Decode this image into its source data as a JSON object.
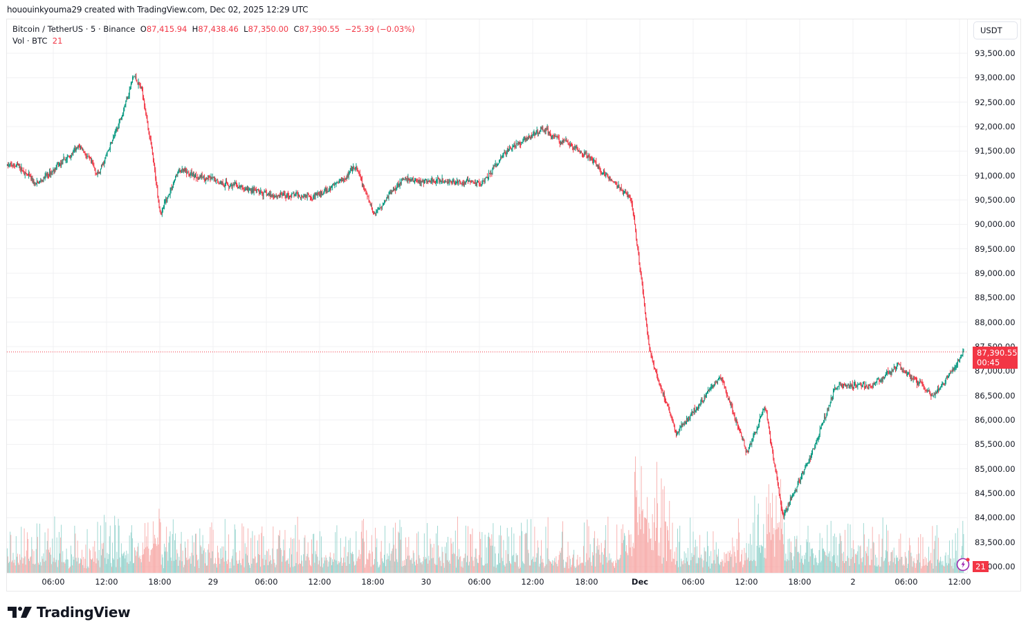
{
  "credit": "hououinkyouma29 created with TradingView.com, Dec 02, 2025 12:29 UTC",
  "legend": {
    "symbol": "Bitcoin / TetherUS · 5 · Binance",
    "o_label": "O",
    "o_value": "87,415.94",
    "h_label": "H",
    "h_value": "87,438.46",
    "l_label": "L",
    "l_value": "87,350.00",
    "c_label": "C",
    "c_value": "87,390.55",
    "change": "−25.39 (−0.03%)",
    "vol_label": "Vol · BTC",
    "vol_value": "21"
  },
  "currency_button": "USDT",
  "last_price": {
    "price": "87,390.55",
    "countdown": "00:45",
    "value": 87390.55
  },
  "volume_tag": "21",
  "brand": "TradingView",
  "colors": {
    "up": "#089981",
    "down": "#f23645",
    "up_volume": "#92d2cc",
    "down_volume": "#f7a9a7",
    "grid": "#f0f1f3",
    "last_price_line": "#f23645",
    "bolt": "#9c27b0"
  },
  "chart_data": {
    "type": "candlestick",
    "title": "Bitcoin / TetherUS · 5 · Binance",
    "interval": "5",
    "xlabel": "",
    "ylabel": "USDT",
    "ylim": [
      82900,
      93700
    ],
    "y_ticks": [
      93500,
      93000,
      92500,
      92000,
      91500,
      91000,
      90500,
      90000,
      89500,
      89000,
      88500,
      88000,
      87500,
      87000,
      86500,
      86000,
      85500,
      85000,
      84500,
      84000,
      83500,
      83000
    ],
    "y_tick_labels": [
      "93,500.00",
      "93,000.00",
      "92,500.00",
      "92,000.00",
      "91,500.00",
      "91,000.00",
      "90,500.00",
      "90,000.00",
      "89,500.00",
      "89,000.00",
      "88,500.00",
      "88,000.00",
      "87,500.00",
      "87,000.00",
      "86,500.00",
      "86,000.00",
      "85,500.00",
      "85,000.00",
      "84,500.00",
      "84,000.00",
      "83,500.00",
      "83,000.00"
    ],
    "x_tick_labels": [
      "06:00",
      "12:00",
      "18:00",
      "29",
      "06:00",
      "12:00",
      "18:00",
      "30",
      "06:00",
      "12:00",
      "18:00",
      "Dec",
      "06:00",
      "12:00",
      "18:00",
      "2",
      "06:00",
      "12:00"
    ],
    "grid": true,
    "price_path_approx": [
      {
        "t": "Nov 28 02:00",
        "price": 91200
      },
      {
        "t": "Nov 28 04:00",
        "price": 90800
      },
      {
        "t": "Nov 28 09:00",
        "price": 91600
      },
      {
        "t": "Nov 28 11:00",
        "price": 91000
      },
      {
        "t": "Nov 28 13:00",
        "price": 91900
      },
      {
        "t": "Nov 28 15:00",
        "price": 93050
      },
      {
        "t": "Nov 28 16:00",
        "price": 92700
      },
      {
        "t": "Nov 28 17:00",
        "price": 91500
      },
      {
        "t": "Nov 28 18:00",
        "price": 90200
      },
      {
        "t": "Nov 28 20:00",
        "price": 91100
      },
      {
        "t": "Nov 29 06:00",
        "price": 90600
      },
      {
        "t": "Nov 29 12:00",
        "price": 90600
      },
      {
        "t": "Nov 29 16:00",
        "price": 91150
      },
      {
        "t": "Nov 29 18:00",
        "price": 90200
      },
      {
        "t": "Nov 29 21:00",
        "price": 90900
      },
      {
        "t": "Nov 30 06:00",
        "price": 90850
      },
      {
        "t": "Nov 30 09:00",
        "price": 91500
      },
      {
        "t": "Nov 30 13:00",
        "price": 91950
      },
      {
        "t": "Nov 30 18:00",
        "price": 91400
      },
      {
        "t": "Nov 30 23:00",
        "price": 90500
      },
      {
        "t": "Dec 01 00:00",
        "price": 89000
      },
      {
        "t": "Dec 01 01:00",
        "price": 87400
      },
      {
        "t": "Dec 01 04:00",
        "price": 85700
      },
      {
        "t": "Dec 01 09:00",
        "price": 86900
      },
      {
        "t": "Dec 01 12:00",
        "price": 85300
      },
      {
        "t": "Dec 01 14:00",
        "price": 86300
      },
      {
        "t": "Dec 01 16:00",
        "price": 84000
      },
      {
        "t": "Dec 01 19:00",
        "price": 85200
      },
      {
        "t": "Dec 01 22:00",
        "price": 86700
      },
      {
        "t": "Dec 02 02:00",
        "price": 86700
      },
      {
        "t": "Dec 02 05:00",
        "price": 87100
      },
      {
        "t": "Dec 02 09:00",
        "price": 86500
      },
      {
        "t": "Dec 02 12:25",
        "price": 87390.55
      }
    ],
    "volume_panel": {
      "last_value": 21,
      "unit": "BTC"
    }
  }
}
